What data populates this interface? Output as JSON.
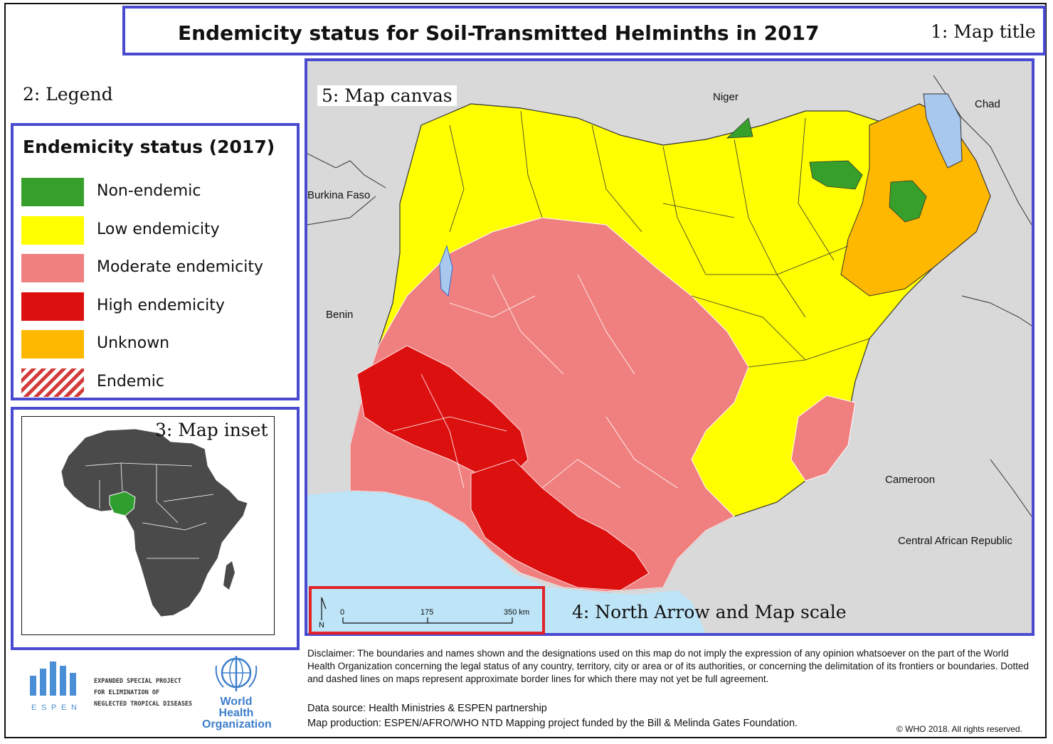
{
  "title": "Endemicity status for Soil-Transmitted Helminths in 2017",
  "callouts": {
    "map_title": "1: Map title",
    "legend": "2: Legend",
    "map_inset": "3: Map inset",
    "north_arrow_scale": "4: North Arrow and Map scale",
    "map_canvas": "5: Map canvas"
  },
  "legend": {
    "title": "Endemicity status (2017)",
    "items": [
      {
        "label": "Non-endemic",
        "color": "#36a02b"
      },
      {
        "label": "Low endemicity",
        "color": "#ffff00"
      },
      {
        "label": "Moderate endemicity",
        "color": "#f08080"
      },
      {
        "label": "High endemicity",
        "color": "#dd1010"
      },
      {
        "label": "Unknown",
        "color": "#ffb800"
      },
      {
        "label": "Endemic",
        "color": "hatched-red"
      }
    ]
  },
  "countries": {
    "niger": "Niger",
    "chad": "Chad",
    "burkina_faso": "Burkina Faso",
    "benin": "Benin",
    "cameroon": "Cameroon",
    "car": "Central African Republic"
  },
  "scale": {
    "ticks": [
      "0",
      "175",
      "350 km"
    ],
    "north": "N"
  },
  "colors": {
    "ocean": "#bde4f7",
    "neighbors": "#d9d9d9",
    "lake": "#a9c8ee",
    "inset_africa": "#4a4a4a",
    "inset_highlight": "#2e9e2e",
    "accent_box": "#4a4ad0",
    "scale_box": "#e0242a"
  },
  "footer": {
    "espen_lines": [
      "EXPANDED SPECIAL PROJECT",
      "FOR ELIMINATION OF",
      "NEGLECTED TROPICAL DISEASES"
    ],
    "espen_letters": [
      "E",
      "S",
      "P",
      "E",
      "N"
    ],
    "who_lines": [
      "World Health",
      "Organization"
    ],
    "disclaimer": "Disclaimer: The boundaries and names shown and the designations used on this map do not imply the expression of any opinion whatsoever on the part  of the World Health Organization concerning the legal status of any country, territory, city or area or of its  authorities, or concerning the delimitation of its frontiers or boundaries. Dotted and dashed lines on maps represent approximate border lines for which there may not yet be full agreement.",
    "data_source": "Data source: Health Ministries & ESPEN partnership",
    "map_production": "Map production: ESPEN/AFRO/WHO NTD Mapping project funded by the Bill & Melinda Gates Foundation.",
    "copyright": "© WHO 2018. All rights reserved."
  }
}
